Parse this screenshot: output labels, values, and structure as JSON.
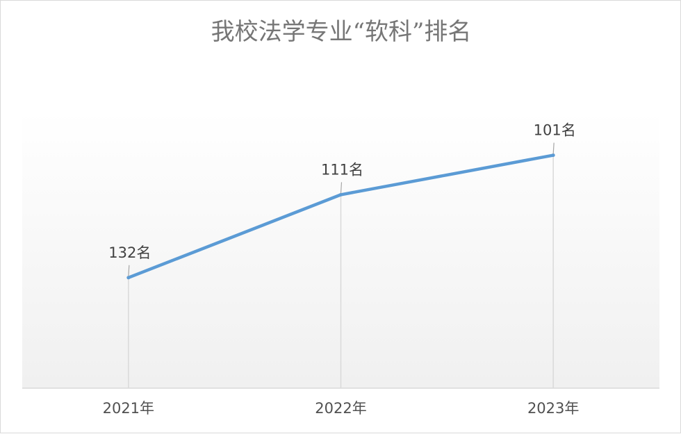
{
  "chart_data": {
    "type": "line",
    "title": "我校法学专业“软科”排名",
    "categories": [
      "2021年",
      "2022年",
      "2023年"
    ],
    "values": [
      132,
      111,
      101
    ],
    "data_labels": [
      "132名",
      "111名",
      "101名"
    ],
    "xlabel": "",
    "ylabel": "",
    "y_reversed": true,
    "y_axis_visible": false,
    "ylim": [
      90,
      160
    ],
    "grid": false,
    "drop_lines": true,
    "legend": "none",
    "colors": {
      "line": "#5b9bd5",
      "drop_line": "#d9d9d9",
      "axis": "#d9d9d9",
      "plot_gradient_top": "#ffffff",
      "plot_gradient_bottom": "#f0f0f0"
    }
  }
}
